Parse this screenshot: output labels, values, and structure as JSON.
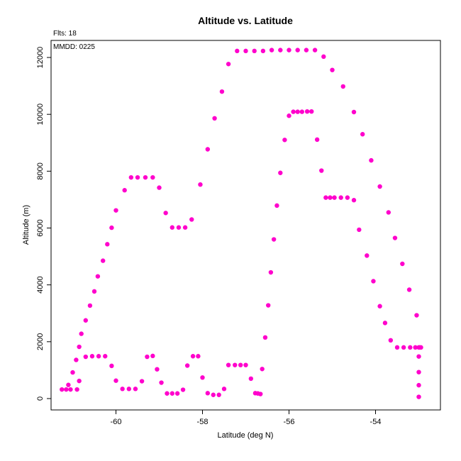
{
  "chart_data": {
    "type": "scatter",
    "title": "Altitude vs. Latitude",
    "xlabel": "Latitude (deg N)",
    "ylabel": "Altitude (m)",
    "xlim": [
      -61.5,
      -52.5
    ],
    "ylim": [
      -400,
      12600
    ],
    "xticks": [
      -60,
      -58,
      -56,
      -54
    ],
    "yticks": [
      0,
      2000,
      4000,
      6000,
      8000,
      10000,
      12000
    ],
    "annotations": {
      "flights": "Flts: 18",
      "date": "MMDD: 0225"
    },
    "grid": false,
    "marker_color": "#ff00cc",
    "points": [
      [
        -61.25,
        320
      ],
      [
        -61.15,
        320
      ],
      [
        -61.05,
        320
      ],
      [
        -60.9,
        320
      ],
      [
        -61.1,
        480
      ],
      [
        -61.0,
        920
      ],
      [
        -60.92,
        1360
      ],
      [
        -60.85,
        1820
      ],
      [
        -60.8,
        2280
      ],
      [
        -60.7,
        2750
      ],
      [
        -60.6,
        3270
      ],
      [
        -60.5,
        3770
      ],
      [
        -60.42,
        4300
      ],
      [
        -60.3,
        4850
      ],
      [
        -60.2,
        5430
      ],
      [
        -60.1,
        6010
      ],
      [
        -60.0,
        6620
      ],
      [
        -59.8,
        7330
      ],
      [
        -59.65,
        7780
      ],
      [
        -59.5,
        7780
      ],
      [
        -59.32,
        7780
      ],
      [
        -59.15,
        7780
      ],
      [
        -59.0,
        7420
      ],
      [
        -58.85,
        6530
      ],
      [
        -58.7,
        6020
      ],
      [
        -58.55,
        6020
      ],
      [
        -58.4,
        6020
      ],
      [
        -58.25,
        6300
      ],
      [
        -58.05,
        7530
      ],
      [
        -57.88,
        8770
      ],
      [
        -57.72,
        9860
      ],
      [
        -57.55,
        10800
      ],
      [
        -57.4,
        11770
      ],
      [
        -57.2,
        12230
      ],
      [
        -57.0,
        12230
      ],
      [
        -56.8,
        12230
      ],
      [
        -56.6,
        12230
      ],
      [
        -56.4,
        12260
      ],
      [
        -56.2,
        12260
      ],
      [
        -56.0,
        12260
      ],
      [
        -55.8,
        12260
      ],
      [
        -55.6,
        12260
      ],
      [
        -55.4,
        12260
      ],
      [
        -55.2,
        12030
      ],
      [
        -55.0,
        11560
      ],
      [
        -54.75,
        10980
      ],
      [
        -54.5,
        10080
      ],
      [
        -54.3,
        9300
      ],
      [
        -54.1,
        8380
      ],
      [
        -53.9,
        7460
      ],
      [
        -53.7,
        6550
      ],
      [
        -53.55,
        5650
      ],
      [
        -53.38,
        4740
      ],
      [
        -53.22,
        3830
      ],
      [
        -53.05,
        2930
      ],
      [
        -53.0,
        1800
      ],
      [
        -52.95,
        1800
      ],
      [
        -52.98,
        1800
      ],
      [
        -53.0,
        1480
      ],
      [
        -53.0,
        930
      ],
      [
        -53.0,
        470
      ],
      [
        -53.0,
        60
      ],
      [
        -60.85,
        620
      ],
      [
        -60.7,
        1470
      ],
      [
        -60.55,
        1490
      ],
      [
        -60.4,
        1490
      ],
      [
        -60.25,
        1490
      ],
      [
        -60.1,
        1150
      ],
      [
        -60.0,
        630
      ],
      [
        -59.85,
        340
      ],
      [
        -59.7,
        340
      ],
      [
        -59.55,
        340
      ],
      [
        -59.4,
        610
      ],
      [
        -59.28,
        1470
      ],
      [
        -59.15,
        1500
      ],
      [
        -59.05,
        1030
      ],
      [
        -58.95,
        560
      ],
      [
        -58.82,
        180
      ],
      [
        -58.7,
        180
      ],
      [
        -58.58,
        180
      ],
      [
        -58.45,
        310
      ],
      [
        -58.35,
        1160
      ],
      [
        -58.22,
        1490
      ],
      [
        -58.1,
        1490
      ],
      [
        -58.0,
        740
      ],
      [
        -57.88,
        190
      ],
      [
        -57.75,
        130
      ],
      [
        -57.62,
        130
      ],
      [
        -57.5,
        340
      ],
      [
        -57.4,
        1180
      ],
      [
        -57.25,
        1180
      ],
      [
        -57.12,
        1180
      ],
      [
        -57.0,
        1180
      ],
      [
        -56.88,
        700
      ],
      [
        -56.78,
        190
      ],
      [
        -56.72,
        180
      ],
      [
        -56.66,
        160
      ],
      [
        -56.62,
        1040
      ],
      [
        -56.55,
        2150
      ],
      [
        -56.48,
        3280
      ],
      [
        -56.42,
        4440
      ],
      [
        -56.35,
        5600
      ],
      [
        -56.28,
        6790
      ],
      [
        -56.2,
        7940
      ],
      [
        -56.1,
        9100
      ],
      [
        -56.0,
        9950
      ],
      [
        -55.9,
        10090
      ],
      [
        -55.8,
        10090
      ],
      [
        -55.7,
        10090
      ],
      [
        -55.58,
        10100
      ],
      [
        -55.48,
        10100
      ],
      [
        -55.35,
        9110
      ],
      [
        -55.25,
        8020
      ],
      [
        -55.15,
        7070
      ],
      [
        -55.05,
        7070
      ],
      [
        -54.95,
        7070
      ],
      [
        -54.8,
        7070
      ],
      [
        -54.65,
        7070
      ],
      [
        -54.5,
        6980
      ],
      [
        -54.38,
        5940
      ],
      [
        -54.2,
        5030
      ],
      [
        -54.05,
        4130
      ],
      [
        -53.9,
        3250
      ],
      [
        -53.78,
        2660
      ],
      [
        -53.65,
        2050
      ],
      [
        -53.5,
        1800
      ],
      [
        -53.35,
        1800
      ],
      [
        -53.2,
        1800
      ],
      [
        -53.08,
        1800
      ]
    ]
  }
}
